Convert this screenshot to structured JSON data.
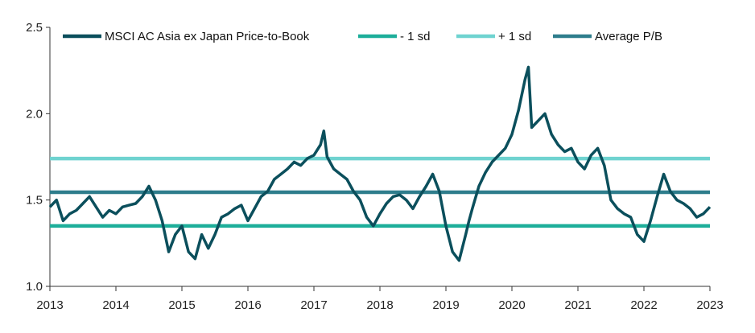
{
  "chart_data": {
    "type": "line",
    "title": "",
    "xlabel": "",
    "ylabel": "",
    "xlim": [
      2013,
      2023
    ],
    "ylim": [
      1.0,
      2.5
    ],
    "grid": false,
    "legend_position": "top",
    "x_ticks": [
      "2013",
      "2014",
      "2015",
      "2016",
      "2017",
      "2018",
      "2019",
      "2020",
      "2021",
      "2022",
      "2023"
    ],
    "y_ticks": [
      "1.0",
      "1.5",
      "2.0",
      "2.5"
    ],
    "series": [
      {
        "name": "MSCI AC Asia ex Japan Price-to-Book",
        "color": "#0b4f5c",
        "x": [
          2013.0,
          2013.1,
          2013.2,
          2013.3,
          2013.4,
          2013.5,
          2013.6,
          2013.7,
          2013.8,
          2013.9,
          2014.0,
          2014.1,
          2014.2,
          2014.3,
          2014.4,
          2014.5,
          2014.6,
          2014.7,
          2014.8,
          2014.9,
          2015.0,
          2015.1,
          2015.2,
          2015.3,
          2015.4,
          2015.5,
          2015.6,
          2015.7,
          2015.8,
          2015.9,
          2016.0,
          2016.1,
          2016.2,
          2016.3,
          2016.4,
          2016.5,
          2016.6,
          2016.7,
          2016.8,
          2016.9,
          2017.0,
          2017.1,
          2017.15,
          2017.2,
          2017.3,
          2017.4,
          2017.5,
          2017.6,
          2017.7,
          2017.8,
          2017.9,
          2018.0,
          2018.1,
          2018.2,
          2018.3,
          2018.4,
          2018.5,
          2018.6,
          2018.7,
          2018.8,
          2018.9,
          2019.0,
          2019.1,
          2019.2,
          2019.3,
          2019.35,
          2019.4,
          2019.5,
          2019.6,
          2019.7,
          2019.8,
          2019.9,
          2020.0,
          2020.1,
          2020.2,
          2020.25,
          2020.3,
          2020.4,
          2020.5,
          2020.6,
          2020.7,
          2020.8,
          2020.9,
          2021.0,
          2021.1,
          2021.2,
          2021.3,
          2021.4,
          2021.5,
          2021.6,
          2021.7,
          2021.8,
          2021.9,
          2022.0,
          2022.1,
          2022.2,
          2022.3,
          2022.4,
          2022.5,
          2022.6,
          2022.7,
          2022.8,
          2022.9,
          2023.0
        ],
        "values": [
          1.46,
          1.5,
          1.38,
          1.42,
          1.44,
          1.48,
          1.52,
          1.46,
          1.4,
          1.44,
          1.42,
          1.46,
          1.47,
          1.48,
          1.52,
          1.58,
          1.5,
          1.38,
          1.2,
          1.3,
          1.35,
          1.2,
          1.16,
          1.3,
          1.22,
          1.3,
          1.4,
          1.42,
          1.45,
          1.47,
          1.38,
          1.45,
          1.52,
          1.55,
          1.62,
          1.65,
          1.68,
          1.72,
          1.7,
          1.74,
          1.76,
          1.82,
          1.9,
          1.75,
          1.68,
          1.65,
          1.62,
          1.55,
          1.5,
          1.4,
          1.35,
          1.42,
          1.48,
          1.52,
          1.53,
          1.5,
          1.45,
          1.52,
          1.58,
          1.65,
          1.55,
          1.35,
          1.2,
          1.15,
          1.3,
          1.38,
          1.45,
          1.58,
          1.66,
          1.72,
          1.76,
          1.8,
          1.88,
          2.02,
          2.2,
          2.27,
          1.92,
          1.96,
          2.0,
          1.88,
          1.82,
          1.78,
          1.8,
          1.72,
          1.68,
          1.76,
          1.8,
          1.7,
          1.5,
          1.45,
          1.42,
          1.4,
          1.3,
          1.26,
          1.38,
          1.52,
          1.65,
          1.55,
          1.5,
          1.48,
          1.45,
          1.4,
          1.42,
          1.46
        ]
      },
      {
        "name": "- 1 sd",
        "color": "#1dae9a",
        "x": [
          2013,
          2023
        ],
        "values": [
          1.35,
          1.35
        ]
      },
      {
        "name": "+ 1 sd",
        "color": "#6fd3d0",
        "x": [
          2013,
          2023
        ],
        "values": [
          1.74,
          1.74
        ]
      },
      {
        "name": "Average P/B",
        "color": "#2e7d8c",
        "x": [
          2013,
          2023
        ],
        "values": [
          1.545,
          1.545
        ]
      }
    ]
  }
}
